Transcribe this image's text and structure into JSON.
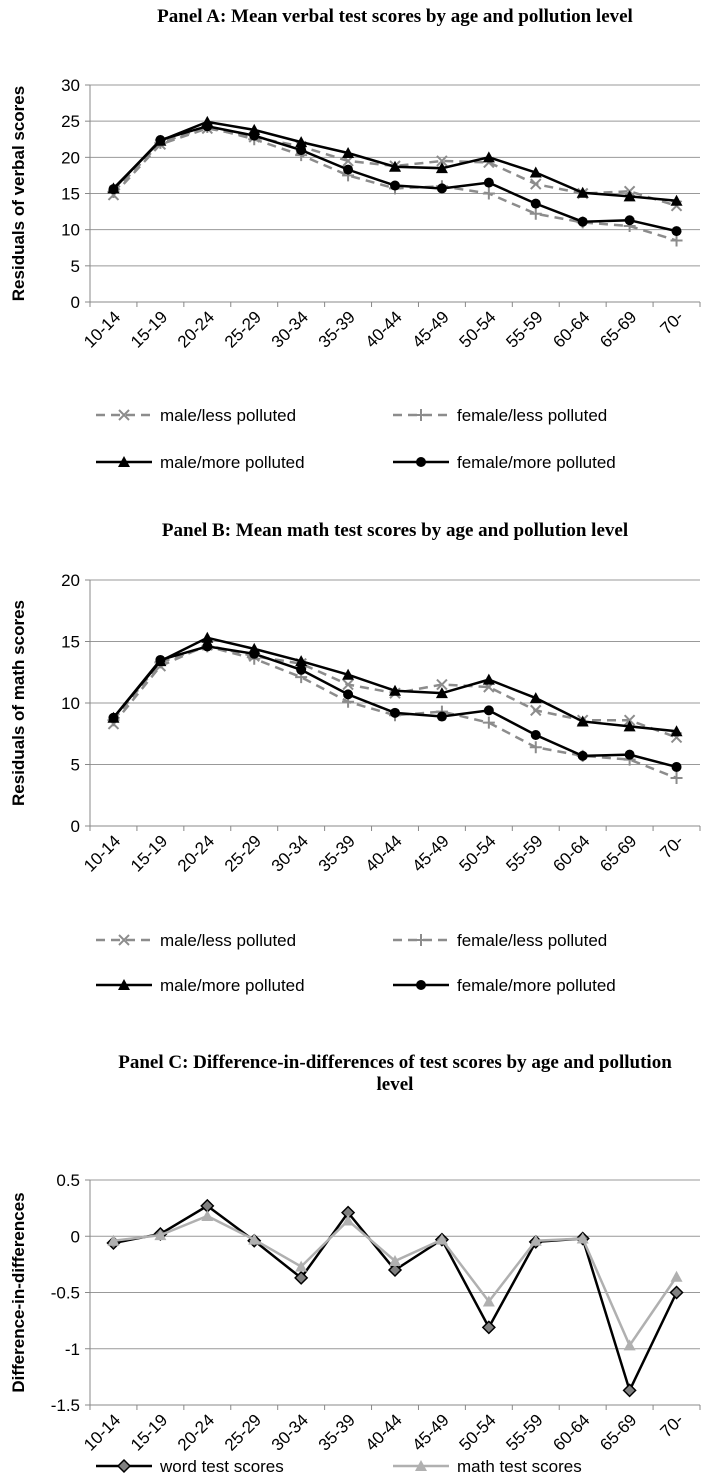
{
  "chart_data": [
    {
      "type": "line",
      "title": "Panel A: Mean verbal test scores by age and pollution level",
      "ylabel": "Residuals of verbal scores",
      "categories": [
        "10-14",
        "15-19",
        "20-24",
        "25-29",
        "30-34",
        "35-39",
        "40-44",
        "45-49",
        "50-54",
        "55-59",
        "60-64",
        "65-69",
        "70-"
      ],
      "ylim": [
        0,
        30
      ],
      "yticks": [
        0,
        5,
        10,
        15,
        20,
        25,
        30
      ],
      "grid": true,
      "series": [
        {
          "name": "male/less polluted",
          "color": "#8c8c8c",
          "dash": true,
          "marker": "x",
          "values": [
            14.8,
            21.8,
            24.0,
            22.8,
            21.5,
            19.5,
            18.8,
            19.5,
            19.3,
            16.3,
            15.0,
            15.3,
            13.3
          ]
        },
        {
          "name": "female/less polluted",
          "color": "#8c8c8c",
          "dash": true,
          "marker": "plus",
          "values": [
            15.2,
            22.0,
            24.2,
            22.5,
            20.3,
            17.5,
            15.7,
            16.0,
            15.0,
            12.2,
            11.0,
            10.5,
            8.5
          ]
        },
        {
          "name": "male/more polluted",
          "color": "#000000",
          "dash": false,
          "marker": "triangle",
          "values": [
            15.7,
            22.3,
            24.9,
            23.8,
            22.1,
            20.6,
            18.7,
            18.5,
            20.0,
            17.9,
            15.1,
            14.6,
            14.0
          ]
        },
        {
          "name": "female/more polluted",
          "color": "#000000",
          "dash": false,
          "marker": "circle",
          "values": [
            15.6,
            22.4,
            24.3,
            23.0,
            21.0,
            18.3,
            16.1,
            15.7,
            16.5,
            13.6,
            11.1,
            11.3,
            9.8
          ]
        }
      ]
    },
    {
      "type": "line",
      "title": "Panel B: Mean math test scores by age and pollution level",
      "ylabel": "Residuals of math scores",
      "categories": [
        "10-14",
        "15-19",
        "20-24",
        "25-29",
        "30-34",
        "35-39",
        "40-44",
        "45-49",
        "50-54",
        "55-59",
        "60-64",
        "65-69",
        "70-"
      ],
      "ylim": [
        0,
        20
      ],
      "yticks": [
        0,
        5,
        10,
        15,
        20
      ],
      "grid": true,
      "series": [
        {
          "name": "male/less polluted",
          "color": "#8c8c8c",
          "dash": true,
          "marker": "x",
          "values": [
            8.3,
            13.0,
            14.7,
            13.8,
            13.2,
            11.5,
            10.8,
            11.5,
            11.3,
            9.4,
            8.6,
            8.6,
            7.2
          ]
        },
        {
          "name": "female/less polluted",
          "color": "#8c8c8c",
          "dash": true,
          "marker": "plus",
          "values": [
            8.6,
            13.3,
            14.6,
            13.6,
            12.1,
            10.1,
            9.0,
            9.3,
            8.4,
            6.4,
            5.7,
            5.4,
            3.9
          ]
        },
        {
          "name": "male/more polluted",
          "color": "#000000",
          "dash": false,
          "marker": "triangle",
          "values": [
            8.8,
            13.4,
            15.3,
            14.4,
            13.4,
            12.3,
            11.0,
            10.8,
            11.9,
            10.4,
            8.5,
            8.1,
            7.7
          ]
        },
        {
          "name": "female/more polluted",
          "color": "#000000",
          "dash": false,
          "marker": "circle",
          "values": [
            8.8,
            13.5,
            14.6,
            14.0,
            12.7,
            10.7,
            9.2,
            8.9,
            9.4,
            7.4,
            5.7,
            5.8,
            4.8
          ]
        }
      ]
    },
    {
      "type": "line",
      "title": "Panel C: Difference-in-differences of test scores by age and pollution level",
      "ylabel": "Difference-in-differences",
      "categories": [
        "10-14",
        "15-19",
        "20-24",
        "25-29",
        "30-34",
        "35-39",
        "40-44",
        "45-49",
        "50-54",
        "55-59",
        "60-64",
        "65-69",
        "70-"
      ],
      "ylim": [
        -1.5,
        0.5
      ],
      "yticks": [
        -1.5,
        -1,
        -0.5,
        0,
        0.5
      ],
      "grid": true,
      "series": [
        {
          "name": "word test scores",
          "color": "#000000",
          "dash": false,
          "marker": "diamond",
          "values": [
            -0.06,
            0.02,
            0.27,
            -0.04,
            -0.37,
            0.21,
            -0.3,
            -0.03,
            -0.81,
            -0.05,
            -0.02,
            -1.37,
            -0.5
          ]
        },
        {
          "name": "math test scores",
          "color": "#b0b0b0",
          "dash": false,
          "marker": "triangle",
          "values": [
            -0.04,
            0.01,
            0.18,
            -0.03,
            -0.27,
            0.14,
            -0.22,
            -0.03,
            -0.58,
            -0.04,
            -0.02,
            -0.97,
            -0.36
          ]
        }
      ]
    }
  ]
}
